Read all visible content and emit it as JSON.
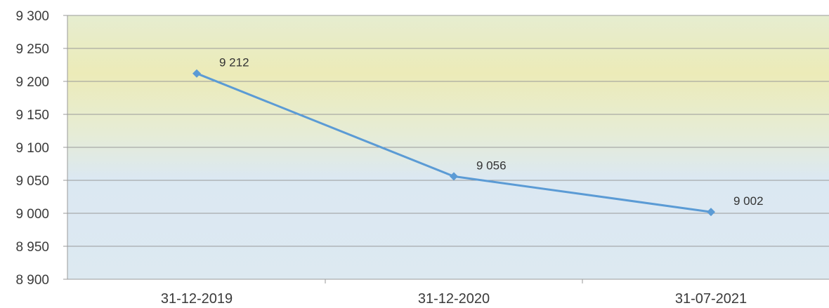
{
  "chart_data": {
    "type": "line",
    "title": "",
    "xlabel": "",
    "ylabel": "",
    "categories": [
      "31-12-2019",
      "31-12-2020",
      "31-07-2021"
    ],
    "series": [
      {
        "values": [
          9212,
          9056,
          9002
        ],
        "color": "#5b9bd5"
      }
    ],
    "data_labels": [
      "9 212",
      "9 056",
      "9 002"
    ],
    "y_ticks": [
      8900,
      8950,
      9000,
      9050,
      9100,
      9150,
      9200,
      9250,
      9300
    ],
    "y_tick_labels": [
      "8 900",
      "8 950",
      "9 000",
      "9 050",
      "9 100",
      "9 150",
      "9 200",
      "9 250",
      "9 300"
    ],
    "ylim": [
      8900,
      9300
    ],
    "grid": true,
    "legend": "none",
    "colors": {
      "background_top": "#e6edd0",
      "background_band": "#ecebb8",
      "background_bottom": "#dbe8f2",
      "gridline": "#9a9a9a",
      "line": "#5b9bd5"
    }
  }
}
